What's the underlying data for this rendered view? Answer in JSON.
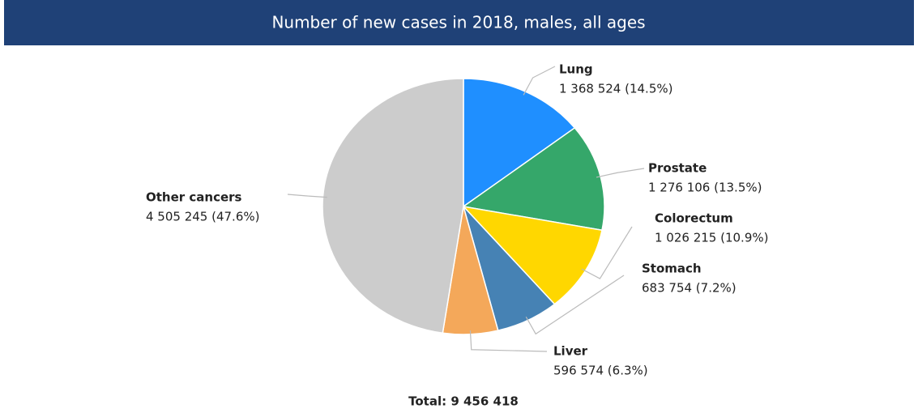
{
  "chart_data": {
    "type": "pie",
    "title": "Number of new cases in 2018, males, all ages",
    "categories": [
      "Lung",
      "Prostate",
      "Colorectum",
      "Stomach",
      "Liver",
      "Other cancers"
    ],
    "values": [
      1368524,
      1276106,
      1026215,
      683754,
      596574,
      4505245
    ],
    "value_labels": [
      "1 368 524 (14.5%)",
      "1 276 106 (13.5%)",
      "1 026 215 (10.9%)",
      "683 754 (7.2%)",
      "596 574 (6.3%)",
      "4 505 245 (47.6%)"
    ],
    "colors": [
      "#1f8fff",
      "#35a76a",
      "#ffd700",
      "#4682b4",
      "#f4a85a",
      "#cccccc"
    ],
    "total_label": "Total: 9 456 418"
  }
}
